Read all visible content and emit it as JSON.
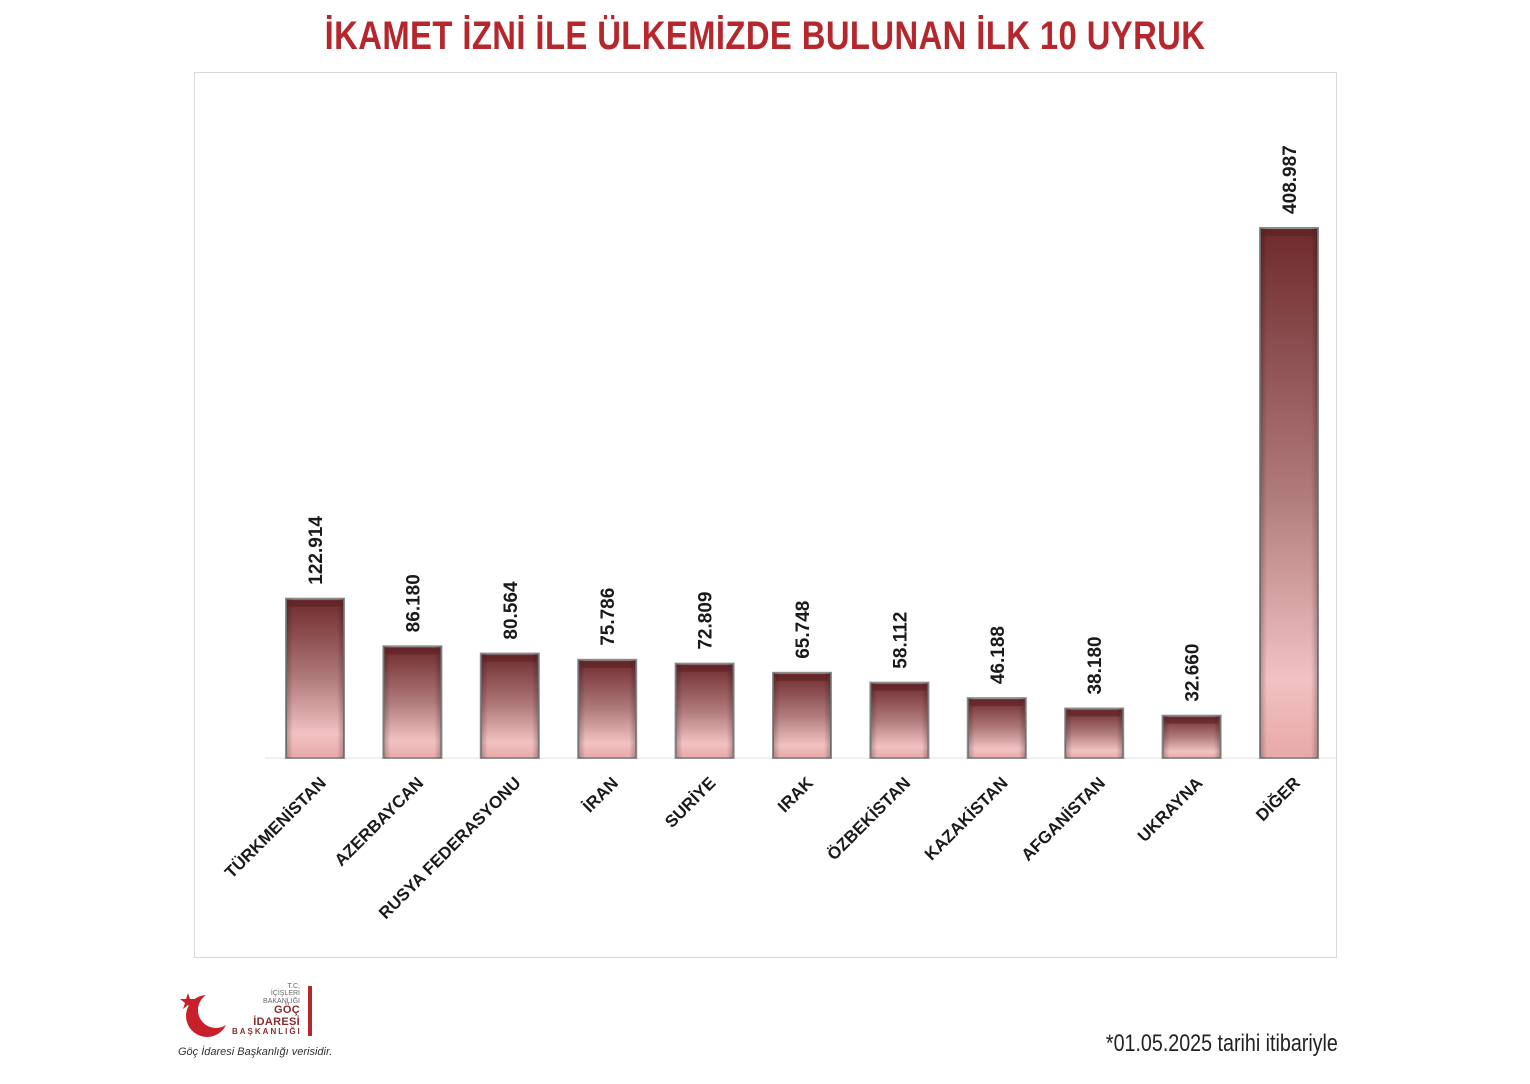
{
  "title": "İKAMET İZNİ İLE ÜLKEMİZDE BULUNAN İLK 10 UYRUK",
  "chart_data": {
    "type": "bar",
    "categories": [
      "TÜRKMENİSTAN",
      "AZERBAYCAN",
      "RUSYA FEDERASYONU",
      "İRAN",
      "SURİYE",
      "IRAK",
      "ÖZBEKİSTAN",
      "KAZAKİSTAN",
      "AFGANİSTAN",
      "UKRAYNA",
      "DİĞER"
    ],
    "values": [
      122914,
      86180,
      80564,
      75786,
      72809,
      65748,
      58112,
      46188,
      38180,
      32660,
      408987
    ],
    "value_labels": [
      "122.914",
      "86.180",
      "80.564",
      "75.786",
      "72.809",
      "65.748",
      "58.112",
      "46.188",
      "38.180",
      "32.660",
      "408.987"
    ],
    "ylim": [
      0,
      500000
    ],
    "grid": false,
    "legend": "none",
    "colors": {
      "bar_dark": "#6e2a2d",
      "bar_light": "#f0c0c0",
      "title": "#b5272d"
    }
  },
  "logo": {
    "line1": "T.C.",
    "line2": "İÇİŞLERİ BAKANLIĞI",
    "line3": "GÖÇ İDARESİ",
    "line4": "BAŞKANLIĞI"
  },
  "source_note": "Göç İdaresi Başkanlığı verisidir.",
  "footnote": "*01.05.2025 tarihi itibariyle"
}
